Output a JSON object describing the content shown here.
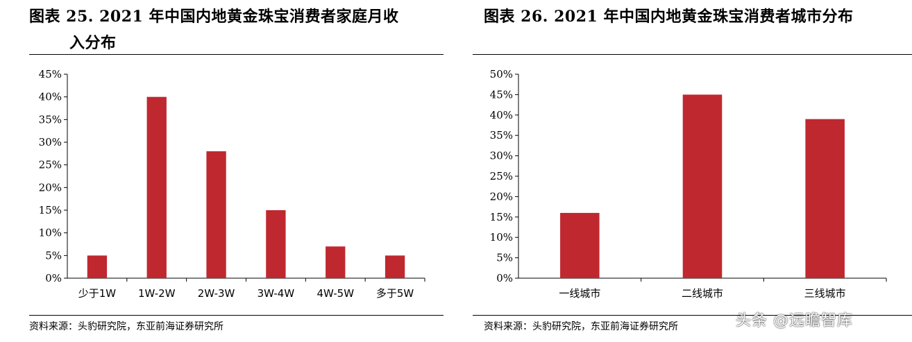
{
  "panels": [
    {
      "title_line1": "图表 25. 2021 年中国内地黄金珠宝消费者家庭月收",
      "title_line2": "入分布",
      "source": "资料来源：头豹研究院，东亚前海证券研究所"
    },
    {
      "title_line1": "图表 26. 2021 年中国内地黄金珠宝消费者城市分布",
      "source": "资料来源：头豹研究院，东亚前海证券研究所"
    }
  ],
  "watermark": "头条 @远瞻智库",
  "colors": {
    "bar": "#c0282f",
    "axis": "#000000"
  },
  "chart_data": [
    {
      "type": "bar",
      "title": "图表 25. 2021 年中国内地黄金珠宝消费者家庭月收入分布",
      "categories": [
        "少于1W",
        "1W-2W",
        "2W-3W",
        "3W-4W",
        "4W-5W",
        "多于5W"
      ],
      "values": [
        5,
        40,
        28,
        15,
        7,
        5
      ],
      "unit": "%",
      "ylim": [
        0,
        45
      ],
      "yticks": [
        0,
        5,
        10,
        15,
        20,
        25,
        30,
        35,
        40,
        45
      ],
      "ytick_labels": [
        "0%",
        "5%",
        "10%",
        "15%",
        "20%",
        "25%",
        "30%",
        "35%",
        "40%",
        "45%"
      ],
      "grid": false,
      "legend": "none"
    },
    {
      "type": "bar",
      "title": "图表 26. 2021 年中国内地黄金珠宝消费者城市分布",
      "categories": [
        "一线城市",
        "二线城市",
        "三线城市"
      ],
      "values": [
        16,
        45,
        39
      ],
      "unit": "%",
      "ylim": [
        0,
        50
      ],
      "yticks": [
        0,
        5,
        10,
        15,
        20,
        25,
        30,
        35,
        40,
        45,
        50
      ],
      "ytick_labels": [
        "0%",
        "5%",
        "10%",
        "15%",
        "20%",
        "25%",
        "30%",
        "35%",
        "40%",
        "45%",
        "50%"
      ],
      "grid": false,
      "legend": "none"
    }
  ]
}
